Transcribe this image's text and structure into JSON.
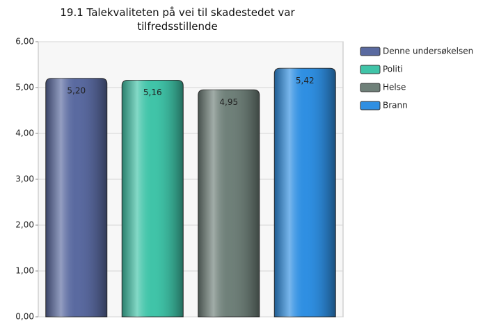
{
  "chart_data": {
    "type": "bar",
    "title": "19.1 Talekvaliteten på vei til skadestedet var tilfredsstillende",
    "categories": [
      null
    ],
    "series": [
      {
        "name": "Denne undersøkelsen",
        "color": "#5a6aa0",
        "values": [
          5.2
        ],
        "value_labels": [
          "5,20"
        ]
      },
      {
        "name": "Politi",
        "color": "#40c4a8",
        "values": [
          5.16
        ],
        "value_labels": [
          "5,16"
        ]
      },
      {
        "name": "Helse",
        "color": "#6f8079",
        "values": [
          4.95
        ],
        "value_labels": [
          "4,95"
        ]
      },
      {
        "name": "Brann",
        "color": "#2f8fe2",
        "values": [
          5.42
        ],
        "value_labels": [
          "5,42"
        ]
      }
    ],
    "ylim": [
      0,
      6
    ],
    "yticks": [
      {
        "value": 0,
        "label": "0,00"
      },
      {
        "value": 1,
        "label": "1,00"
      },
      {
        "value": 2,
        "label": "2,00"
      },
      {
        "value": 3,
        "label": "3,00"
      },
      {
        "value": 4,
        "label": "4,00"
      },
      {
        "value": 5,
        "label": "5,00"
      },
      {
        "value": 6,
        "label": "6,00"
      }
    ],
    "grid": true,
    "legend": "right"
  }
}
